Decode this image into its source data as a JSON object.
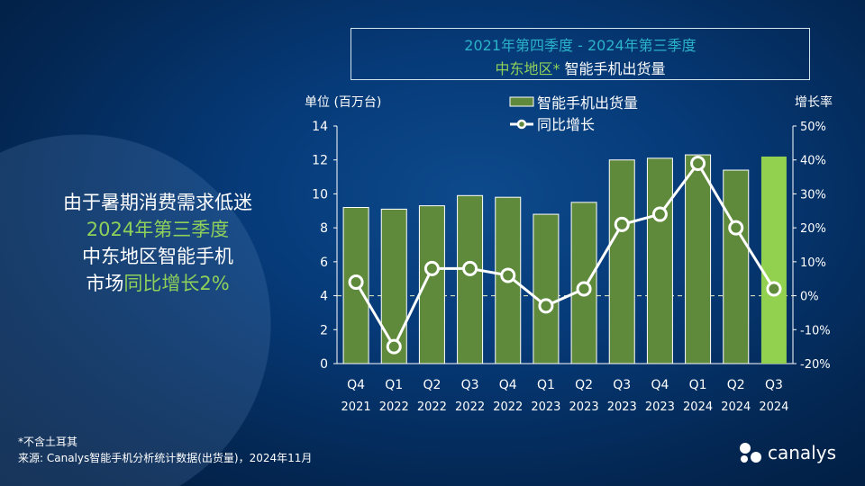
{
  "headline": {
    "line1": "由于暑期消费需求低迷",
    "line2": "2024年第三季度",
    "line3": "中东地区智能手机",
    "line4a": "市场",
    "line4b": "同比增长2%"
  },
  "footnote": "*不含土耳其",
  "source": "来源: Canalys智能手机分析统计数据(出货量)，2024年11月",
  "logo_text": "canalys",
  "colors": {
    "bar": "#5f8a3c",
    "bar_highlight": "#92d050",
    "line": "#ffffff",
    "title_period": "#2ab3c9",
    "accent": "#8fd05a"
  },
  "chart_data": {
    "type": "bar",
    "title_period": "2021年第四季度 - 2024年第三季度",
    "title_region": "中东地区*",
    "title_metric": "智能手机出货量",
    "ylabel": "单位 (百万台)",
    "y2label": "增长率",
    "ylim": [
      0,
      14
    ],
    "y_ticks": [
      "0",
      "2",
      "4",
      "6",
      "8",
      "10",
      "12",
      "14"
    ],
    "y2lim": [
      -20,
      50
    ],
    "y2_ticks": [
      "-20%",
      "-10%",
      "0%",
      "10%",
      "20%",
      "30%",
      "40%",
      "50%"
    ],
    "categories": [
      [
        "Q4",
        "2021"
      ],
      [
        "Q1",
        "2022"
      ],
      [
        "Q2",
        "2022"
      ],
      [
        "Q3",
        "2022"
      ],
      [
        "Q4",
        "2022"
      ],
      [
        "Q1",
        "2023"
      ],
      [
        "Q2",
        "2023"
      ],
      [
        "Q3",
        "2023"
      ],
      [
        "Q4",
        "2023"
      ],
      [
        "Q1",
        "2024"
      ],
      [
        "Q2",
        "2024"
      ],
      [
        "Q3",
        "2024"
      ]
    ],
    "series": [
      {
        "name": "智能手机出货量",
        "type": "bar",
        "axis": "left",
        "values": [
          9.2,
          9.1,
          9.3,
          9.9,
          9.8,
          8.8,
          9.5,
          12.0,
          12.1,
          12.3,
          11.4,
          12.2
        ]
      },
      {
        "name": "同比增长",
        "type": "line",
        "axis": "right",
        "values": [
          4,
          -15,
          8,
          8,
          6,
          -3,
          2,
          21,
          24,
          39,
          20,
          2
        ]
      }
    ]
  }
}
